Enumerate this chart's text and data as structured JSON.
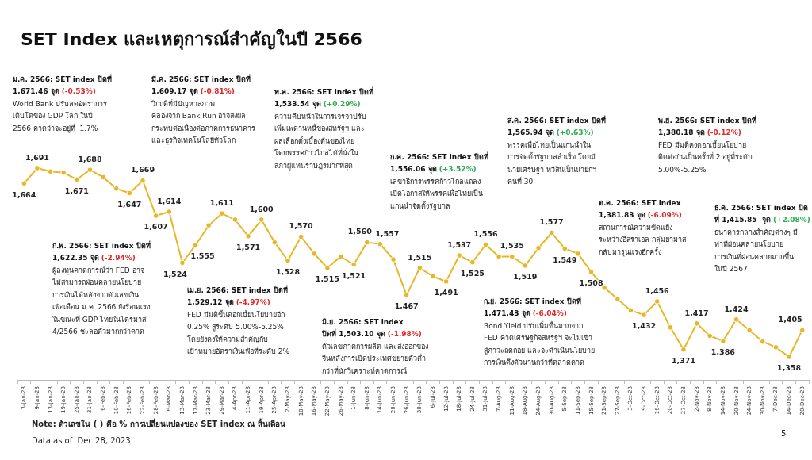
{
  "chart_data": {
    "type": "line",
    "title": "SET Index และเหตุการณ์สำคัญในปี 2566",
    "categories": [
      "3-Jan-23",
      "9-Jan-23",
      "13-Jan-23",
      "19-Jan-23",
      "25-Jan-23",
      "31-Jan-23",
      "6-Feb-23",
      "10-Feb-23",
      "16-Feb-23",
      "22-Feb-23",
      "28-Feb-23",
      "6-Mar-23",
      "13-Mar-23",
      "17-Mar-23",
      "23-Mar-23",
      "29-Mar-23",
      "4-Apr-23",
      "11-Apr-23",
      "19-Apr-23",
      "25-Apr-23",
      "2-May-23",
      "10-May-23",
      "16-May-23",
      "22-May-23",
      "26-May-23",
      "1-Jun-23",
      "8-Jun-23",
      "14-Jun-23",
      "20-Jun-23",
      "26-Jun-23",
      "30-Jun-23",
      "6-Jul-23",
      "12-Jul-23",
      "18-Jul-23",
      "24-Jul-23",
      "31-Jul-23",
      "7-Aug-23",
      "11-Aug-23",
      "18-Aug-23",
      "24-Aug-23",
      "30-Aug-23",
      "5-Sep-23",
      "11-Sep-23",
      "15-Sep-23",
      "21-Sep-23",
      "27-Sep-23",
      "3-Oct-23",
      "9-Oct-23",
      "16-Oct-23",
      "20-Oct-23",
      "27-Oct-23",
      "2-Nov-23",
      "8-Nov-23",
      "14-Nov-23",
      "20-Nov-23",
      "24-Nov-23",
      "30-Nov-23",
      "7-Dec-23",
      "14-Dec-23",
      "20-Dec-23"
    ],
    "values": [
      1664,
      1691,
      1685,
      1683,
      1671,
      1688,
      1675,
      1655,
      1647,
      1669,
      1607,
      1614,
      1524,
      1555,
      1590,
      1611,
      1600,
      1571,
      1600,
      1560,
      1528,
      1570,
      1540,
      1515,
      1535,
      1521,
      1560,
      1557,
      1530,
      1467,
      1515,
      1500,
      1491,
      1537,
      1525,
      1556,
      1535,
      1535,
      1519,
      1550,
      1577,
      1549,
      1540,
      1508,
      1480,
      1460,
      1440,
      1432,
      1456,
      1410,
      1371,
      1417,
      1395,
      1386,
      1424,
      1405,
      1385,
      1375,
      1358,
      1405
    ],
    "value_labels": [
      "1,664",
      "1,691",
      null,
      null,
      "1,671",
      "1,688",
      null,
      null,
      "1,647",
      "1,669",
      "1,607",
      "1,614",
      "1,524",
      "1,555",
      null,
      "1,611",
      null,
      "1,571",
      "1,600",
      null,
      "1,528",
      "1,570",
      null,
      "1,515",
      null,
      "1,521",
      "1,560",
      "1,557",
      null,
      "1,467",
      "1,515",
      null,
      "1,491",
      "1,537",
      "1,525",
      "1,556",
      null,
      "1,535",
      "1,519",
      null,
      "1,577",
      "1,549",
      null,
      "1,508",
      null,
      null,
      null,
      "1,432",
      "1,456",
      null,
      "1,371",
      "1,417",
      null,
      "1,386",
      "1,424",
      null,
      null,
      null,
      "1,358",
      "1,405"
    ],
    "color": "#e6b828",
    "marker": "circle",
    "annotations": [
      "ม.ค. 2566: SET index ปิดที่\n1,671.46 จุด (-0.53%)\nWorld Bank ปรับลดอัตราการ\nเติบโตของ GDP โลก ในปี\n2566 คาดว่าจะอยู่ที่  1.7%",
      "มี.ค. 2566: SET index ปิดที่\n1,609.17 จุด (-0.81%)\nวิกฤติที่มีปัญหาสภาพ\nคล่องจาก Bank Run อาจส่งผล\nกระทบต่อเนื่องต่อภาคการธนาคาร\nและธุรกิจเทคโนโลยีทั่วโลก",
      "พ.ค. 2566: SET index ปิดที่\n1,533.54 จุด (+0.29%)\nความคืบหน้าในการเจรจาปรับ\nเพิ่มเพดานหนี้ของสหรัฐฯ และ\nผลเลือกตั้งเบื้องต้นของไทย\nโดยพรรคก้าวไกลได้ที่นั่งใน\nสภาผู้แทนราษฎรมากที่สุด",
      "ก.ค. 2566: SET index ปิดที่\n1,556.06 จุด (+3.52%)\nเลขาธิการพรรคก้าวไกลแถลง\nเปิดโอกาสให้พรรคเพื่อไทยเป็น\nแกนนำจัดตั้งรัฐบาล",
      "ส.ค. 2566: SET index ปิดที่\n1,565.94 จุด (+0.63%)\nพรรคเพื่อไทยเป็นแกนนำใน\nการจัดตั้งรัฐบาลสำเร็จ โดยมี\nนายเศรษฐา ทวีสินเป็นนายกฯ\nคนที่ 30",
      "พ.ย. 2566: SET index ปิดที่\n1,380.18 จุด (-0.12%)\nFED มีมติคงดอกเบี้ยนโยบาย\nติดต่อกันเป็นครั้งที่ 2 อยู่ที่ระดับ\n5.00%-5.25%",
      "ก.พ. 2566: SET index ปิดที่\n1,622.35 จุด (-2.94%)\nผู้ลงทุนคาดการณ์ว่า FED อาจ\nไม่สามารถผ่อนคลายนโยบาย\nการเงินได้หลังจากตัวเลขเงิน\nเฟ้อเดือน ม.ค. 2566 ยังร้อนแรง\nในขณะที่ GDP ไทยในไตรมาส\n4/2566 ชะลอตัวมากกว่าคาด",
      "เม.ย. 2566: SET index ปิดที่\n1,529.12 จุด (-4.97%)\nFED มีมติขึ้นดอกเบี้ยนโยบายอีก\n0.25% สู่ระดับ 5.00%-5.25%\nโดยยังคงให้ความสำคัญกับ\nเป้าหมายอัตราเงินเฟ้อที่ระดับ 2%",
      "มิ.ย. 2566: SET index\nปิดที่ 1,503.10 จุด (-1.98%)\nตัวเลขภาคการผลิต และส่งออกของ\nจีนหลังการเปิดประเทศขยายตัวต่ำ\nกว่าที่นักวิเคราะห์คาดการณ์",
      "ก.ย. 2566: SET index ปิดที่\n1,471.43 จุด (-6.04%)\nBond Yield ปรับเพิ่มขึ้นมากจาก\nFED คาดเศรษฐกิจสหรัฐฯ จะไม่เข้า\nสู่ภาวะถดถอย และจะดำเนินนโยบาย\nการเงินตึงตัวนานกว่าที่ตลาดคาด",
      "ต.ค. 2566: SET index\n1,381.83 จุด (-6.09%)\nสถานการณ์ความขัดแย้ง\nระหว่างอิสราเอล-กลุ่มฮามาส\nกลับมารุนแรงอีกครั้ง",
      "ธ.ค. 2566: SET index ปิด\nที่ 1,415.85  จุด (+2.08%)\nธนาคารกลางสำคัญต่างๆ มี\nท่าทีผ่อนคลายนโยบาย\nการเงินที่ผ่อนคลายมากขึ้น\nในปี 2567",
      "Note: ตัวเลขใน ( ) คือ % การเปลี่ยนแปลงของ SET index ณ สิ้นเดือน",
      "Data as of  Dec 28, 2023",
      "5"
    ]
  }
}
